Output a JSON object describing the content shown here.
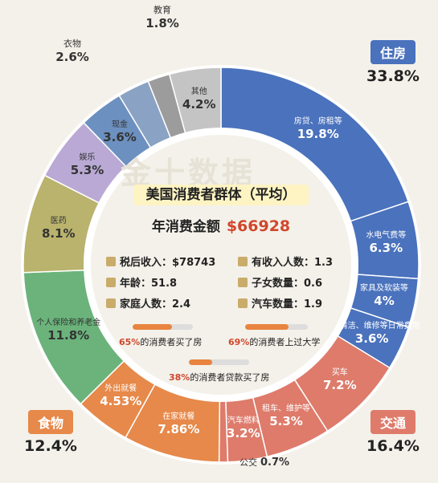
{
  "chart_data": {
    "type": "pie",
    "title": "美国消费者群体（平均）",
    "categories": [
      {
        "name": "住房",
        "pct": "33.8%",
        "color": "#4a72bd"
      },
      {
        "name": "交通",
        "pct": "16.4%",
        "color": "#de7b6b"
      },
      {
        "name": "食物",
        "pct": "12.4%",
        "color": "#e6894a"
      }
    ],
    "slices": [
      {
        "name": "房贷、房租等",
        "value": 19.8,
        "label": "19.8%",
        "color": "#4a72bd",
        "group": "住房"
      },
      {
        "name": "水电气费等",
        "value": 6.3,
        "label": "6.3%",
        "color": "#4a72bd",
        "group": "住房"
      },
      {
        "name": "家具及软装等",
        "value": 4,
        "label": "4%",
        "color": "#4a72bd",
        "group": "住房"
      },
      {
        "name": "清洁、维修等日常费用",
        "value": 3.6,
        "label": "3.6%",
        "color": "#4a72bd",
        "group": "住房"
      },
      {
        "name": "买车",
        "value": 7.2,
        "label": "7.2%",
        "color": "#de7b6b",
        "group": "交通"
      },
      {
        "name": "租车、维护等",
        "value": 5.3,
        "label": "5.3%",
        "color": "#de7b6b",
        "group": "交通"
      },
      {
        "name": "汽车燃料",
        "value": 3.2,
        "label": "3.2%",
        "color": "#de7b6b",
        "group": "交通"
      },
      {
        "name": "公交",
        "value": 0.7,
        "label": "0.7%",
        "color": "#de7b6b",
        "group": "交通"
      },
      {
        "name": "在家就餐",
        "value": 7.86,
        "label": "7.86%",
        "color": "#e6894a",
        "group": "食物"
      },
      {
        "name": "外出就餐",
        "value": 4.53,
        "label": "4.53%",
        "color": "#e6894a",
        "group": "食物"
      },
      {
        "name": "个人保险和养老金",
        "value": 11.8,
        "label": "11.8%",
        "color": "#6bb37b"
      },
      {
        "name": "医药",
        "value": 8.1,
        "label": "8.1%",
        "color": "#b9b36d"
      },
      {
        "name": "娱乐",
        "value": 5.3,
        "label": "5.3%",
        "color": "#b9a9d4"
      },
      {
        "name": "现金",
        "value": 3.6,
        "label": "3.6%",
        "color": "#6c90bf"
      },
      {
        "name": "衣物",
        "value": 2.6,
        "label": "2.6%",
        "color": "#8aa3c4"
      },
      {
        "name": "教育",
        "value": 1.8,
        "label": "1.8%",
        "color": "#9c9c9c"
      },
      {
        "name": "其他",
        "value": 4.2,
        "label": "4.2%",
        "color": "#c4c4c4"
      }
    ]
  },
  "center": {
    "title": "美国消费者群体（平均）",
    "total_label": "年消费金额",
    "total_value": "$66928",
    "stats": [
      {
        "label": "税后收入：$78743",
        "icon": "coins-icon"
      },
      {
        "label": "有收入人数：1.3",
        "icon": "tie-icon"
      },
      {
        "label": "年龄：51.8",
        "icon": "person-icon"
      },
      {
        "label": "子女数量：0.6",
        "icon": "child-icon"
      },
      {
        "label": "家庭人数：2.4",
        "icon": "house-icon"
      },
      {
        "label": "汽车数量：1.9",
        "icon": "car-icon"
      }
    ],
    "bars": [
      {
        "pct": "65%",
        "text": "的消费者买了房",
        "fill": 0.65
      },
      {
        "pct": "69%",
        "text": "的消费者上过大学",
        "fill": 0.69
      },
      {
        "pct": "38%",
        "text": "的消费者贷款买了房",
        "fill": 0.38
      }
    ]
  }
}
